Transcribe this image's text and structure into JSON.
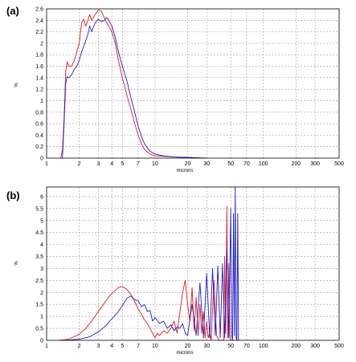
{
  "chart_data": [
    {
      "type": "line",
      "panel_label": "(a)",
      "xlabel": "microns",
      "ylabel": "%",
      "xscale": "log",
      "xlim": [
        1,
        500
      ],
      "ylim": [
        0,
        2.6
      ],
      "grid": true,
      "xtick_values": [
        1,
        2,
        3,
        4,
        5,
        7,
        10,
        20,
        30,
        50,
        70,
        100,
        200,
        300,
        500
      ],
      "xtick_labels": [
        "1",
        "2",
        "3",
        "4",
        "5",
        "7",
        "10",
        "20",
        "30",
        "50",
        "70",
        "100",
        "200",
        "300",
        "500"
      ],
      "ytick_values": [
        0,
        0.2,
        0.4,
        0.6,
        0.8,
        1,
        1.2,
        1.4,
        1.6,
        1.8,
        2,
        2.2,
        2.4,
        2.6
      ],
      "ytick_labels": [
        "0",
        "0.2",
        "0.4",
        "0.6",
        "0.8",
        "1",
        "1.2",
        "1.4",
        "1.6",
        "1.8",
        "2",
        "2.2",
        "2.4",
        "2.6"
      ],
      "series": [
        {
          "color": "#e41a1c",
          "x": [
            1.35,
            1.4,
            1.45,
            1.5,
            1.55,
            1.6,
            1.7,
            1.8,
            1.9,
            2.0,
            2.1,
            2.2,
            2.3,
            2.4,
            2.5,
            2.6,
            2.8,
            3.0,
            3.2,
            3.4,
            3.6,
            3.8,
            4.0,
            4.3,
            4.6,
            5.0,
            5.5,
            6.0,
            6.5,
            7.0,
            7.5,
            8.0,
            9.0,
            10,
            12,
            15,
            20,
            25,
            30
          ],
          "y": [
            0,
            0.15,
            0.7,
            1.5,
            1.68,
            1.6,
            1.6,
            1.7,
            1.85,
            2.0,
            2.35,
            2.42,
            2.3,
            2.4,
            2.5,
            2.4,
            2.5,
            2.58,
            2.56,
            2.45,
            2.35,
            2.28,
            2.2,
            2.0,
            1.7,
            1.4,
            1.1,
            0.85,
            0.6,
            0.4,
            0.25,
            0.15,
            0.07,
            0.04,
            0.03,
            0.02,
            0.01,
            0.005,
            0
          ]
        },
        {
          "color": "#1f1fcc",
          "x": [
            1.4,
            1.45,
            1.5,
            1.55,
            1.6,
            1.7,
            1.8,
            1.9,
            2.0,
            2.1,
            2.2,
            2.3,
            2.4,
            2.5,
            2.6,
            2.8,
            3.0,
            3.2,
            3.4,
            3.6,
            3.8,
            4.0,
            4.3,
            4.6,
            5.0,
            5.5,
            6.0,
            6.5,
            7.0,
            7.5,
            8.0,
            9.0,
            10,
            12,
            15,
            20,
            25,
            30
          ],
          "y": [
            0,
            0.6,
            1.3,
            1.42,
            1.4,
            1.45,
            1.55,
            1.6,
            1.7,
            1.85,
            1.95,
            2.05,
            2.15,
            2.3,
            2.2,
            2.35,
            2.42,
            2.38,
            2.4,
            2.45,
            2.38,
            2.3,
            2.1,
            1.85,
            1.6,
            1.35,
            1.05,
            0.8,
            0.55,
            0.38,
            0.25,
            0.12,
            0.07,
            0.04,
            0.02,
            0.015,
            0.005,
            0
          ]
        }
      ]
    },
    {
      "type": "line",
      "panel_label": "(b)",
      "xlabel": "microns",
      "ylabel": "%",
      "xscale": "log",
      "xlim": [
        1,
        500
      ],
      "ylim": [
        0,
        6.4
      ],
      "grid": true,
      "xtick_values": [
        1,
        2,
        3,
        4,
        5,
        7,
        10,
        20,
        30,
        50,
        70,
        100,
        200,
        300,
        500
      ],
      "xtick_labels": [
        "1",
        "2",
        "3",
        "4",
        "5",
        "7",
        "10",
        "20",
        "30",
        "50",
        "70",
        "100",
        "200",
        "300",
        "500"
      ],
      "ytick_values": [
        0,
        0.5,
        1,
        1.5,
        2,
        2.5,
        3,
        3.5,
        4,
        4.5,
        5,
        5.5,
        6
      ],
      "ytick_labels": [
        "0",
        "0.5",
        "1",
        "1.5",
        "2",
        "2.5",
        "3",
        "3.5",
        "4",
        "4.5",
        "5",
        "5.5",
        "6"
      ],
      "series": [
        {
          "color": "#e41a1c",
          "x": [
            1.3,
            1.6,
            2.0,
            2.3,
            2.6,
            3.0,
            3.4,
            3.8,
            4.2,
            4.6,
            5.0,
            5.4,
            5.8,
            6.2,
            6.6,
            7.0,
            7.5,
            8.0,
            8.5,
            9.0,
            9.5,
            10,
            10.5,
            11,
            12,
            13,
            14,
            15,
            16,
            17,
            18,
            19,
            20,
            21,
            22,
            23,
            24,
            25,
            26,
            27,
            28,
            29,
            30,
            31,
            32,
            33,
            35,
            37,
            39,
            41,
            43,
            44,
            45,
            46,
            47,
            48,
            49,
            50,
            52
          ],
          "y": [
            0,
            0.05,
            0.25,
            0.5,
            0.8,
            1.2,
            1.55,
            1.85,
            2.05,
            2.2,
            2.25,
            2.15,
            2.0,
            1.8,
            1.55,
            1.3,
            1.1,
            0.85,
            0.7,
            0.5,
            0.3,
            0.1,
            0.3,
            0.2,
            0.4,
            0.3,
            0.5,
            0.8,
            0.3,
            1.2,
            2.0,
            2.5,
            1.5,
            0.8,
            2.2,
            0.4,
            1.8,
            0.2,
            1.5,
            0.3,
            1.2,
            0.1,
            0.8,
            0.1,
            0.3,
            0,
            2.5,
            0.2,
            0,
            0,
            0,
            3.5,
            0.3,
            5.6,
            0.1,
            3.2,
            0.2,
            0,
            0
          ]
        },
        {
          "color": "#1f1fcc",
          "x": [
            1.5,
            2.0,
            2.5,
            3.0,
            3.5,
            4.0,
            4.5,
            5.0,
            5.5,
            6.0,
            6.5,
            7.0,
            7.5,
            8.0,
            8.5,
            9.0,
            9.5,
            10,
            11,
            12,
            13,
            14,
            15,
            16,
            17,
            18,
            19,
            20,
            22,
            24,
            26,
            28,
            30,
            32,
            34,
            36,
            38,
            40,
            42,
            44,
            46,
            48,
            50,
            51,
            52,
            53,
            54,
            55,
            56,
            57,
            58,
            59,
            60
          ],
          "y": [
            0,
            0.05,
            0.15,
            0.35,
            0.6,
            0.9,
            1.15,
            1.45,
            1.75,
            1.85,
            1.7,
            1.65,
            1.4,
            1.5,
            1.2,
            1.25,
            0.8,
            0.95,
            0.7,
            0.8,
            0.5,
            0.65,
            0.4,
            0.55,
            0.5,
            0.7,
            0.3,
            0.2,
            1.5,
            0.2,
            2.4,
            0.1,
            2.8,
            0.1,
            3.0,
            0.2,
            3.1,
            0.1,
            3.2,
            0.1,
            3.8,
            0.1,
            5.5,
            0.2,
            0,
            5.3,
            0.2,
            6.4,
            0.1,
            0,
            5.3,
            0,
            0
          ]
        }
      ]
    }
  ]
}
